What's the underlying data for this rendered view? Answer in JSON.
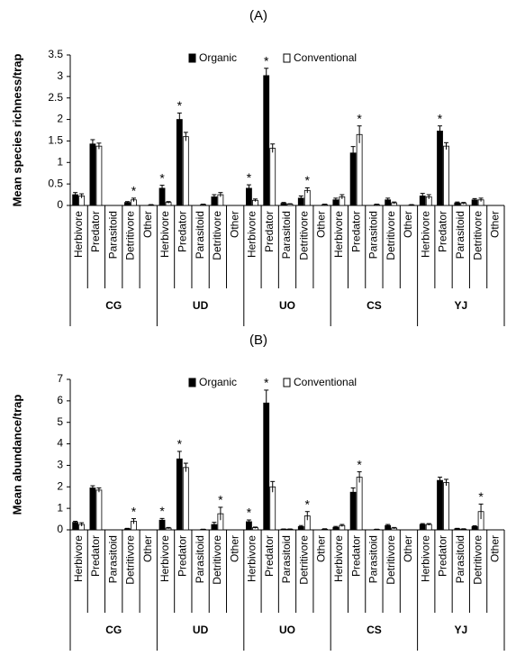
{
  "chart_data": [
    {
      "type": "bar",
      "title": "(A)",
      "y_label": "Mean species richness/trap",
      "categories": [
        "Herbivore",
        "Predator",
        "Parasitoid",
        "Detritivore",
        "Other",
        "Herbivore",
        "Predator",
        "Parasitoid",
        "Detritivore",
        "Other",
        "Herbivore",
        "Predator",
        "Parasitoid",
        "Detritivore",
        "Other",
        "Herbivore",
        "Predator",
        "Parasitoid",
        "Detritivore",
        "Other",
        "Herbivore",
        "Predator",
        "Parasitoid",
        "Detritivore",
        "Other"
      ],
      "groups": [
        "CG",
        "UD",
        "UO",
        "CS",
        "YJ"
      ],
      "series": [
        {
          "name": "Organic",
          "color": "#000000",
          "values": [
            0.25,
            1.43,
            0,
            0.07,
            0,
            0.4,
            2.0,
            0,
            0.2,
            0,
            0.4,
            3.02,
            0.05,
            0.17,
            0,
            0.13,
            1.22,
            0,
            0.13,
            0,
            0.22,
            1.73,
            0.06,
            0.13,
            0
          ],
          "errors": [
            0.05,
            0.1,
            0,
            0.02,
            0,
            0.07,
            0.15,
            0,
            0.05,
            0,
            0.08,
            0.17,
            0.02,
            0.05,
            0,
            0.04,
            0.15,
            0,
            0.04,
            0,
            0.06,
            0.12,
            0.02,
            0.03,
            0
          ],
          "markers": [
            null,
            null,
            null,
            null,
            null,
            "*",
            "*",
            null,
            null,
            null,
            "*",
            "*",
            null,
            null,
            null,
            null,
            null,
            null,
            null,
            null,
            null,
            "*",
            null,
            null,
            null
          ]
        },
        {
          "name": "Conventional",
          "color": "#ffffff",
          "values": [
            0.22,
            1.38,
            0,
            0.13,
            0.01,
            0.07,
            1.6,
            0.02,
            0.25,
            0,
            0.12,
            1.33,
            0.03,
            0.35,
            0.02,
            0.2,
            1.65,
            0.02,
            0.06,
            0.01,
            0.2,
            1.38,
            0.05,
            0.13,
            0
          ],
          "errors": [
            0.05,
            0.07,
            0,
            0.04,
            0.01,
            0.02,
            0.1,
            0.01,
            0.05,
            0,
            0.03,
            0.1,
            0.01,
            0.06,
            0.01,
            0.05,
            0.2,
            0.01,
            0.02,
            0.01,
            0.05,
            0.08,
            0.02,
            0.04,
            0
          ],
          "markers": [
            null,
            null,
            null,
            "*",
            null,
            null,
            null,
            null,
            null,
            null,
            null,
            null,
            null,
            "*",
            null,
            null,
            "*",
            null,
            null,
            null,
            null,
            null,
            null,
            null,
            null
          ]
        }
      ],
      "ylim": [
        0,
        3.5
      ],
      "yticks": [
        0,
        0.5,
        1,
        1.5,
        2,
        2.5,
        3,
        3.5
      ],
      "legend": "top"
    },
    {
      "type": "bar",
      "title": "(B)",
      "y_label": "Mean abundance/trap",
      "categories": [
        "Herbivore",
        "Predator",
        "Parasitoid",
        "Detritivore",
        "Other",
        "Herbivore",
        "Predator",
        "Parasitoid",
        "Detritivore",
        "Other",
        "Herbivore",
        "Predator",
        "Parasitoid",
        "Detritivore",
        "Other",
        "Herbivore",
        "Predator",
        "Parasitoid",
        "Detritivore",
        "Other",
        "Herbivore",
        "Predator",
        "Parasitoid",
        "Detritivore",
        "Other"
      ],
      "groups": [
        "CG",
        "UD",
        "UO",
        "CS",
        "YJ"
      ],
      "series": [
        {
          "name": "Organic",
          "color": "#000000",
          "values": [
            0.35,
            1.95,
            0,
            0.05,
            0,
            0.45,
            3.3,
            0,
            0.25,
            0,
            0.38,
            5.9,
            0.03,
            0.15,
            0,
            0.12,
            1.75,
            0,
            0.2,
            0,
            0.25,
            2.3,
            0.05,
            0.15,
            0
          ],
          "errors": [
            0.05,
            0.1,
            0,
            0.02,
            0,
            0.08,
            0.35,
            0,
            0.1,
            0,
            0.08,
            0.6,
            0.01,
            0.05,
            0,
            0.04,
            0.2,
            0,
            0.05,
            0,
            0.04,
            0.15,
            0.02,
            0.04,
            0
          ],
          "markers": [
            null,
            null,
            null,
            null,
            null,
            "*",
            "*",
            null,
            null,
            null,
            "*",
            "*",
            null,
            null,
            null,
            null,
            null,
            null,
            null,
            null,
            null,
            null,
            null,
            null,
            null
          ]
        },
        {
          "name": "Conventional",
          "color": "#ffffff",
          "values": [
            0.25,
            1.85,
            0,
            0.4,
            0,
            0.08,
            2.9,
            0.02,
            0.75,
            0,
            0.1,
            2.0,
            0.03,
            0.65,
            0.03,
            0.2,
            2.45,
            0.02,
            0.08,
            0,
            0.25,
            2.2,
            0.03,
            0.85,
            0
          ],
          "errors": [
            0.08,
            0.1,
            0,
            0.12,
            0,
            0.03,
            0.2,
            0.01,
            0.3,
            0,
            0.03,
            0.25,
            0.01,
            0.2,
            0.02,
            0.05,
            0.25,
            0.01,
            0.03,
            0,
            0.04,
            0.15,
            0.02,
            0.35,
            0
          ],
          "markers": [
            null,
            null,
            null,
            "*",
            null,
            null,
            null,
            null,
            "*",
            null,
            null,
            null,
            null,
            "*",
            null,
            null,
            "*",
            null,
            null,
            null,
            null,
            null,
            null,
            "*",
            null
          ]
        }
      ],
      "ylim": [
        0,
        7
      ],
      "yticks": [
        0,
        1,
        2,
        3,
        4,
        5,
        6,
        7
      ],
      "legend": "top"
    }
  ]
}
